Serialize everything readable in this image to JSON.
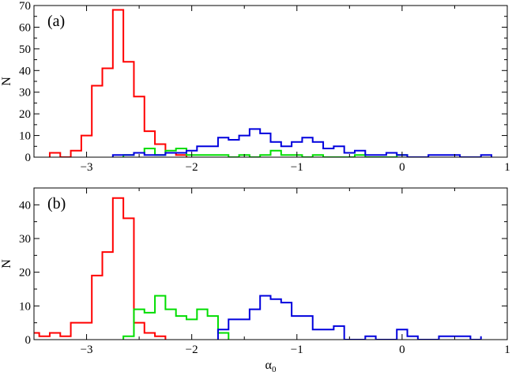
{
  "chart_data": [
    {
      "type": "histogram",
      "panel_label": "(a)",
      "xlabel": "",
      "ylabel": "N",
      "xlim": [
        -3.5,
        1.0
      ],
      "ylim": [
        0,
        70
      ],
      "xticks": [
        -3,
        -2,
        -1,
        0,
        1
      ],
      "yticks": [
        0,
        10,
        20,
        30,
        40,
        50,
        60,
        70
      ],
      "bin_width": 0.1,
      "grid": false,
      "series": [
        {
          "color": "#ff0000",
          "edges": [
            -3.35,
            -3.25,
            -3.15,
            -3.05,
            -2.95,
            -2.85,
            -2.75,
            -2.65,
            -2.55,
            -2.45,
            -2.35,
            -2.25,
            -2.15,
            -2.05
          ],
          "counts": [
            2,
            0,
            3,
            10,
            33,
            41,
            68,
            44,
            28,
            12,
            6,
            2,
            1
          ]
        },
        {
          "color": "#00dd00",
          "edges": [
            -2.65,
            -2.55,
            -2.45,
            -2.35,
            -2.25,
            -2.15,
            -2.05,
            -1.95,
            -1.85,
            -1.75,
            -1.65,
            -1.55,
            -1.45,
            -1.35,
            -1.25,
            -1.15,
            -1.05,
            -0.95,
            -0.85,
            -0.75,
            -0.65,
            -0.55,
            -0.45,
            -0.35,
            -0.25,
            -0.15,
            -0.05,
            0.05
          ],
          "counts": [
            1,
            2,
            4,
            1,
            3,
            4,
            1,
            1,
            1,
            1,
            0,
            1,
            0,
            1,
            3,
            1,
            1,
            0,
            1,
            0,
            0,
            0,
            1,
            0,
            0,
            0,
            1
          ]
        },
        {
          "color": "#0000dd",
          "edges": [
            -2.75,
            -2.65,
            -2.55,
            -2.45,
            -2.35,
            -2.25,
            -2.15,
            -2.05,
            -1.95,
            -1.85,
            -1.75,
            -1.65,
            -1.55,
            -1.45,
            -1.35,
            -1.25,
            -1.15,
            -1.05,
            -0.95,
            -0.85,
            -0.75,
            -0.65,
            -0.55,
            -0.45,
            -0.35,
            -0.25,
            -0.15,
            -0.05,
            0.05,
            0.15,
            0.25,
            0.35,
            0.45,
            0.55,
            0.65,
            0.75,
            0.85
          ],
          "counts": [
            1,
            1,
            2,
            1,
            1,
            2,
            2,
            3,
            5,
            5,
            9,
            8,
            10,
            13,
            11,
            7,
            5,
            7,
            9,
            7,
            4,
            5,
            2,
            3,
            1,
            1,
            2,
            1,
            0,
            0,
            1,
            1,
            1,
            0,
            0,
            1
          ]
        }
      ]
    },
    {
      "type": "histogram",
      "panel_label": "(b)",
      "xlabel": "α0",
      "ylabel": "N",
      "xlim": [
        -3.5,
        1.0
      ],
      "ylim": [
        0,
        45
      ],
      "xticks": [
        -3,
        -2,
        -1,
        0,
        1
      ],
      "yticks": [
        0,
        10,
        20,
        30,
        40
      ],
      "bin_width": 0.1,
      "grid": false,
      "series": [
        {
          "color": "#ff0000",
          "edges": [
            -3.55,
            -3.45,
            -3.35,
            -3.25,
            -3.15,
            -3.05,
            -2.95,
            -2.85,
            -2.75,
            -2.65,
            -2.55,
            -2.45,
            -2.35,
            -2.25
          ],
          "counts": [
            2,
            1,
            2,
            1,
            5,
            5,
            19,
            26,
            42,
            36,
            5,
            2,
            1
          ]
        },
        {
          "color": "#00dd00",
          "edges": [
            -2.65,
            -2.55,
            -2.45,
            -2.35,
            -2.25,
            -2.15,
            -2.05,
            -1.95,
            -1.85,
            -1.75,
            -1.65
          ],
          "counts": [
            1,
            9,
            8,
            13,
            9,
            7,
            6,
            9,
            7,
            2
          ]
        },
        {
          "color": "#0000dd",
          "edges": [
            -1.75,
            -1.65,
            -1.55,
            -1.45,
            -1.35,
            -1.25,
            -1.15,
            -1.05,
            -0.95,
            -0.85,
            -0.75,
            -0.65,
            -0.55,
            -0.45,
            -0.35,
            -0.25,
            -0.15,
            -0.05,
            0.05,
            0.15,
            0.25,
            0.35,
            0.45,
            0.55,
            0.65,
            0.75
          ],
          "counts": [
            3,
            6,
            6,
            9,
            13,
            12,
            11,
            7,
            7,
            3,
            3,
            4,
            0,
            0,
            1,
            0,
            0,
            3,
            1,
            0,
            0,
            1,
            1,
            1,
            0,
            1
          ]
        }
      ]
    }
  ]
}
